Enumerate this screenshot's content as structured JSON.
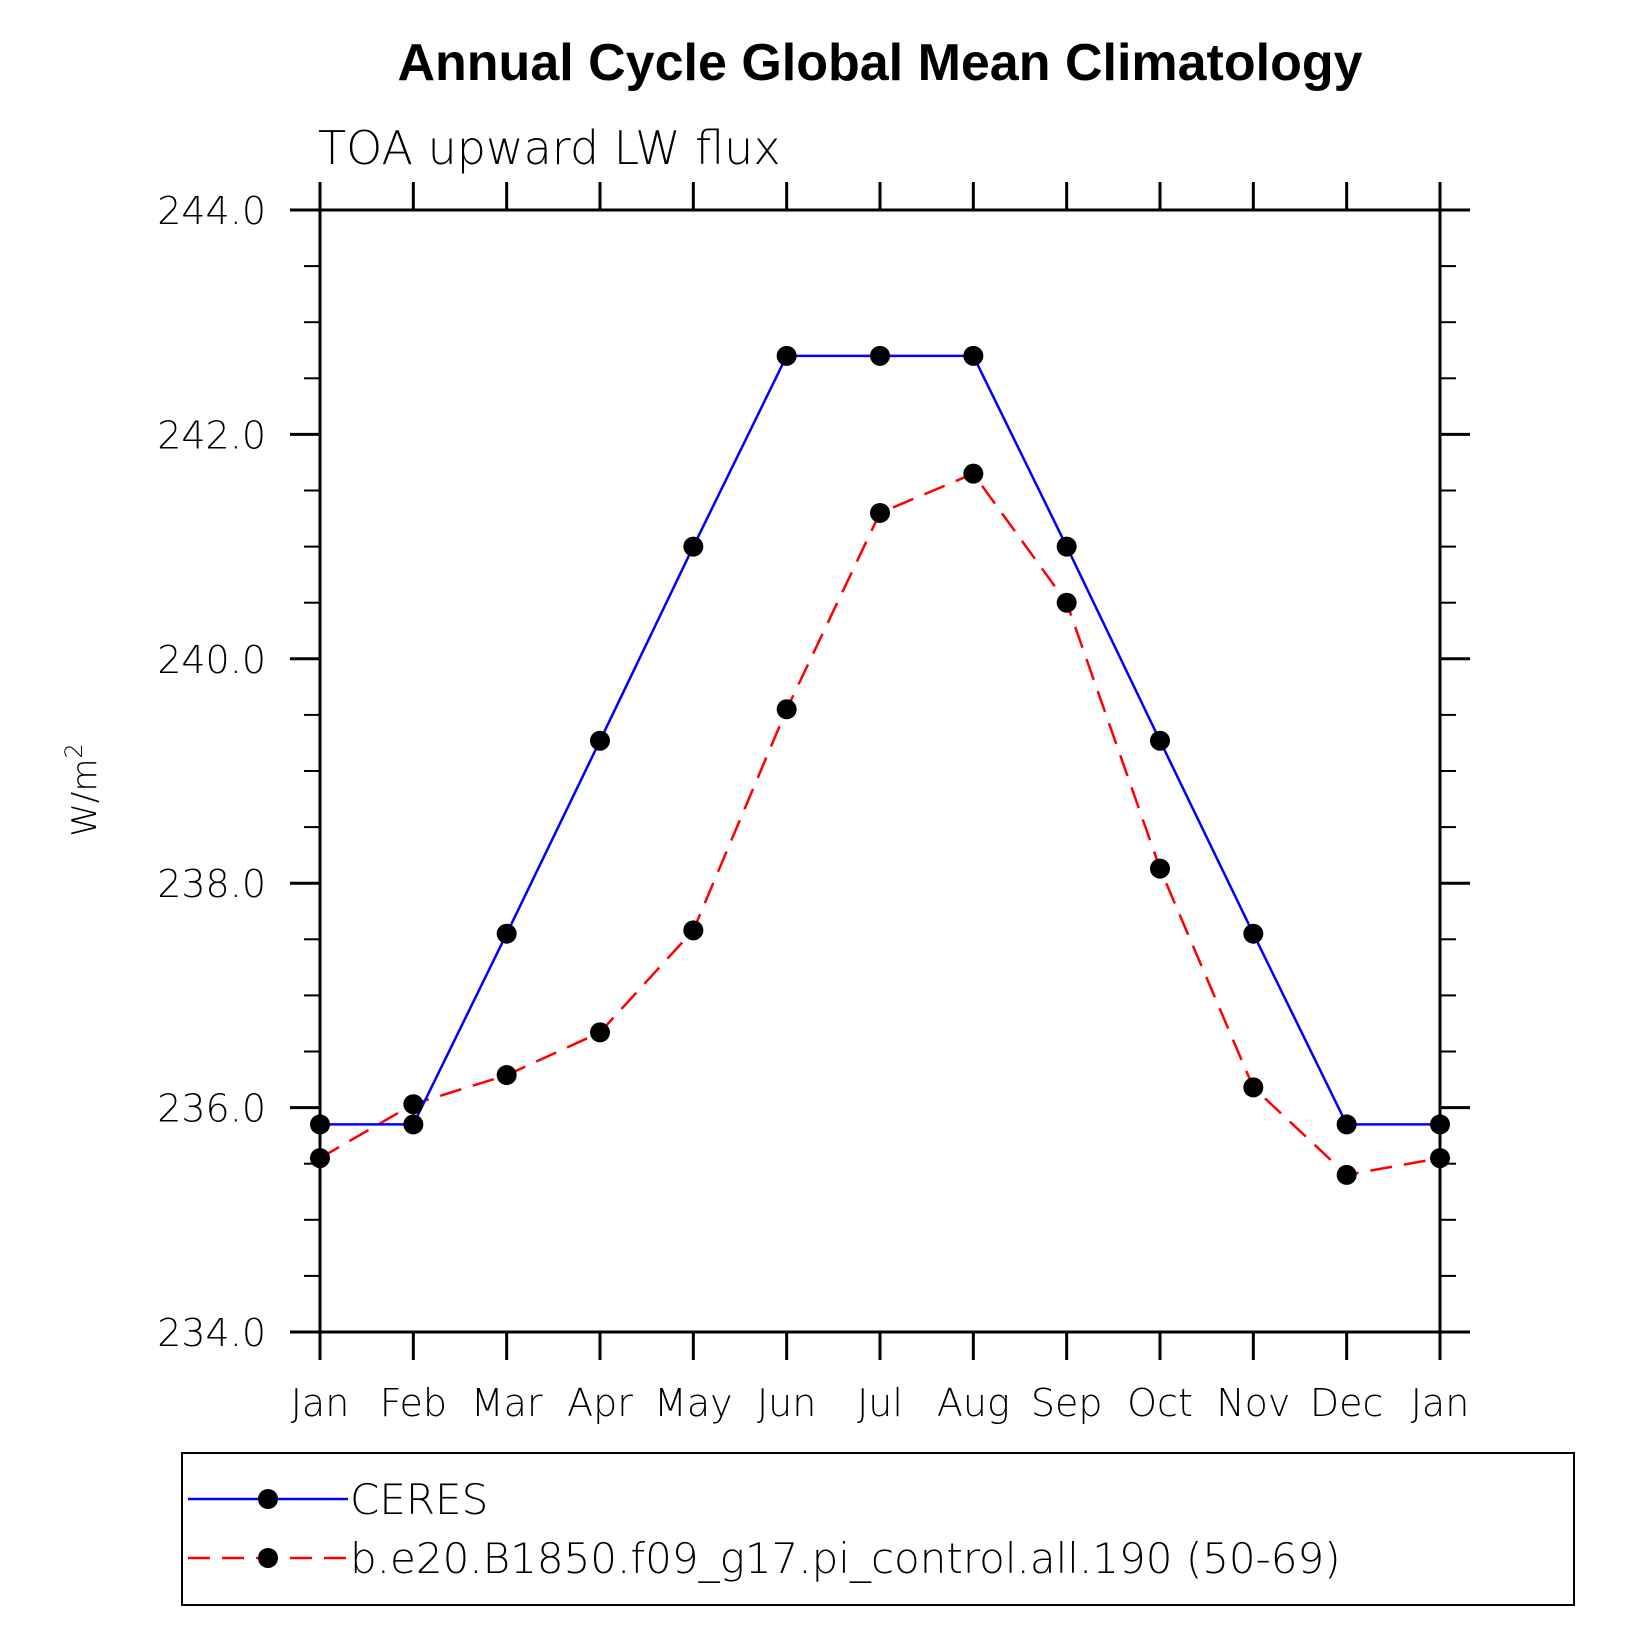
{
  "chart_data": {
    "type": "line",
    "title": "Annual Cycle Global Mean Climatology",
    "subtitle": "TOA upward LW flux",
    "ylabel": "W/m",
    "ylabel_superscript": "2",
    "xlabel": "",
    "categories": [
      "Jan",
      "Feb",
      "Mar",
      "Apr",
      "May",
      "Jun",
      "Jul",
      "Aug",
      "Sep",
      "Oct",
      "Nov",
      "Dec",
      "Jan"
    ],
    "ylim": [
      234.0,
      244.0
    ],
    "yticks": [
      "234.0",
      "236.0",
      "238.0",
      "240.0",
      "242.0",
      "244.0"
    ],
    "ytick_values": [
      234,
      236,
      238,
      240,
      242,
      244
    ],
    "grid": false,
    "legend_position": "bottom",
    "series": [
      {
        "name": "CERES",
        "color": "#0000ff",
        "line_style": "solid",
        "marker": "filled-circle",
        "marker_color": "#000000",
        "values": [
          235.85,
          235.85,
          237.55,
          239.27,
          241.0,
          242.7,
          242.7,
          242.7,
          241.0,
          239.27,
          237.55,
          235.85,
          235.85
        ]
      },
      {
        "name": "b.e20.B1850.f09_g17.pi_control.all.190 (50-69)",
        "color": "#ff0000",
        "line_style": "dashed",
        "marker": "filled-circle",
        "marker_color": "#000000",
        "values": [
          235.55,
          236.03,
          236.29,
          236.67,
          237.58,
          239.55,
          241.3,
          241.65,
          240.5,
          238.13,
          236.18,
          235.4,
          235.55
        ]
      }
    ]
  }
}
